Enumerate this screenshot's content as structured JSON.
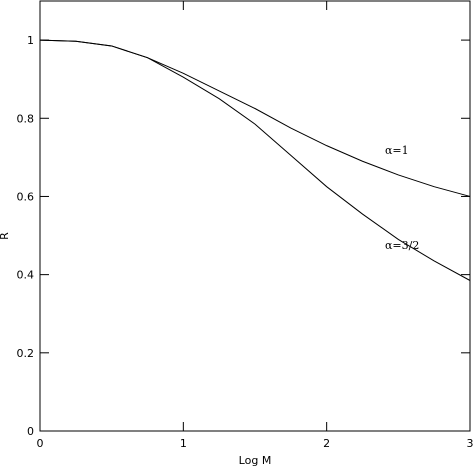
{
  "chart_data": {
    "type": "line",
    "x_label": "Log M",
    "y_label": "R",
    "x": [
      0,
      0.25,
      0.5,
      0.75,
      1,
      1.25,
      1.5,
      1.75,
      2,
      2.25,
      2.5,
      2.75,
      3
    ],
    "series": [
      {
        "name": "α=1",
        "color": "#000000",
        "values": [
          1,
          0.997,
          0.985,
          0.955,
          0.915,
          0.87,
          0.825,
          0.775,
          0.73,
          0.69,
          0.655,
          0.625,
          0.6
        ]
      },
      {
        "name": "α=3/2",
        "color": "#000000",
        "values": [
          1,
          0.997,
          0.985,
          0.955,
          0.905,
          0.85,
          0.785,
          0.705,
          0.625,
          0.555,
          0.49,
          0.435,
          0.385
        ]
      }
    ],
    "xlim": [
      0,
      3
    ],
    "ylim": [
      0,
      1.1
    ],
    "xticks": [
      0,
      1,
      2,
      3
    ],
    "yticks": [
      0,
      0.2,
      0.4,
      0.6,
      0.8,
      1
    ]
  }
}
